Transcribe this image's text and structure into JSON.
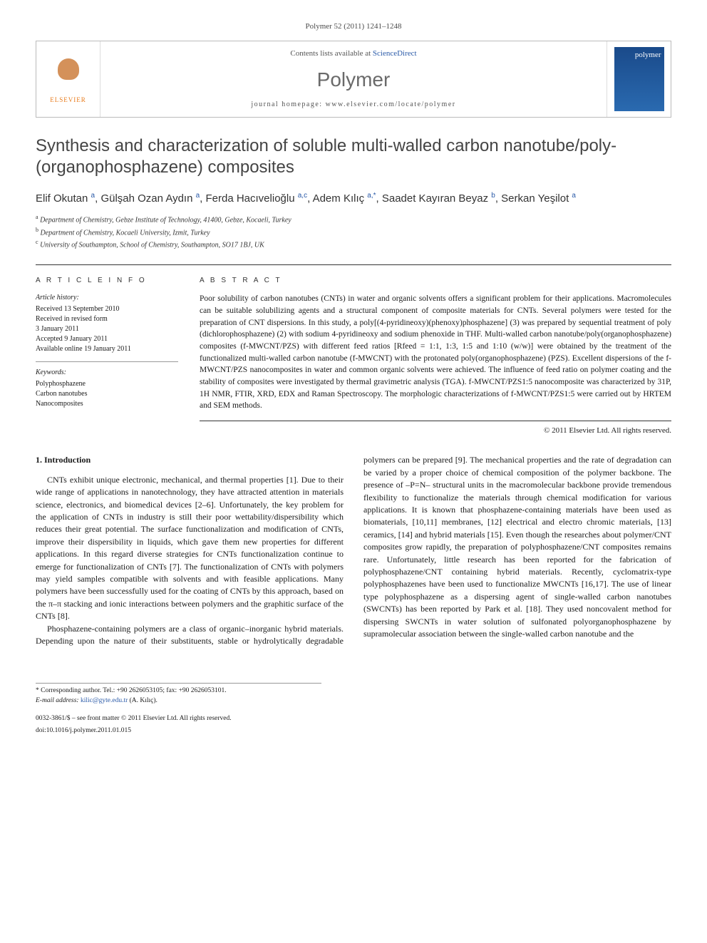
{
  "citation": "Polymer 52 (2011) 1241–1248",
  "header": {
    "contents_prefix": "Contents lists available at ",
    "contents_link": "ScienceDirect",
    "journal": "Polymer",
    "homepage_label": "journal homepage: ",
    "homepage_url": "www.elsevier.com/locate/polymer",
    "publisher": "ELSEVIER",
    "cover_label": "polymer"
  },
  "title": "Synthesis and characterization of soluble multi-walled carbon nanotube/poly-(organophosphazene) composites",
  "authors_html": "Elif Okutan <sup>a</sup>, Gülşah Ozan Aydın <sup>a</sup>, Ferda Hacıvelioğlu <sup>a,c</sup>, Adem Kılıç <sup>a,*</sup>, Saadet Kayıran Beyaz <sup>b</sup>, Serkan Yeşilot <sup>a</sup>",
  "affiliations": [
    {
      "sup": "a",
      "text": "Department of Chemistry, Gebze Institute of Technology, 41400, Gebze, Kocaeli, Turkey"
    },
    {
      "sup": "b",
      "text": "Department of Chemistry, Kocaeli University, Izmit, Turkey"
    },
    {
      "sup": "c",
      "text": "University of Southampton, School of Chemistry, Southampton, SO17 1BJ, UK"
    }
  ],
  "article_info": {
    "heading": "A R T I C L E   I N F O",
    "history_label": "Article history:",
    "received": "Received 13 September 2010",
    "revised1": "Received in revised form",
    "revised2": "3 January 2011",
    "accepted": "Accepted 9 January 2011",
    "online": "Available online 19 January 2011",
    "keywords_label": "Keywords:",
    "keywords": [
      "Polyphosphazene",
      "Carbon nanotubes",
      "Nanocomposites"
    ]
  },
  "abstract": {
    "heading": "A B S T R A C T",
    "text": "Poor solubility of carbon nanotubes (CNTs) in water and organic solvents offers a significant problem for their applications. Macromolecules can be suitable solubilizing agents and a structural component of composite materials for CNTs. Several polymers were tested for the preparation of CNT dispersions. In this study, a poly[(4-pyridineoxy)(phenoxy)phosphazene] (3) was prepared by sequential treatment of poly (dichlorophosphazene) (2) with sodium 4-pyridineoxy and sodium phenoxide in THF. Multi-walled carbon nanotube/poly(organophosphazene) composites (f-MWCNT/PZS) with different feed ratios [Rfeed = 1:1, 1:3, 1:5 and 1:10 (w/w)] were obtained by the treatment of the functionalized multi-walled carbon nanotube (f-MWCNT) with the protonated poly(organophosphazene) (PZS). Excellent dispersions of the f-MWCNT/PZS nanocomposites in water and common organic solvents were achieved. The influence of feed ratio on polymer coating and the stability of composites were investigated by thermal gravimetric analysis (TGA). f-MWCNT/PZS1:5 nanocomposite was characterized by 31P, 1H NMR, FTIR, XRD, EDX and Raman Spectroscopy. The morphologic characterizations of f-MWCNT/PZS1:5 were carried out by HRTEM and SEM methods.",
    "copyright": "© 2011 Elsevier Ltd. All rights reserved."
  },
  "body": {
    "section_number": "1.",
    "section_title": "Introduction",
    "para1": "CNTs exhibit unique electronic, mechanical, and thermal properties [1]. Due to their wide range of applications in nanotechnology, they have attracted attention in materials science, electronics, and biomedical devices [2–6]. Unfortunately, the key problem for the application of CNTs in industry is still their poor wettability/dispersibility which reduces their great potential. The surface functionalization and modification of CNTs, improve their dispersibility in liquids, which gave them new properties for different applications. In this regard diverse strategies for CNTs functionalization continue to emerge for functionalization of CNTs [7]. The functionalization of CNTs with polymers may yield samples compatible with solvents and with feasible applications. Many polymers have been successfully used for the coating of CNTs by this approach, based on the π–π stacking and ionic interactions between polymers and the graphitic surface of the CNTs [8].",
    "para2": "Phosphazene-containing polymers are a class of organic–inorganic hybrid materials. Depending upon the nature of their substituents, stable or hydrolytically degradable polymers can be prepared [9]. The mechanical properties and the rate of degradation can be varied by a proper choice of chemical composition of the polymer backbone. The presence of –P=N– structural units in the macromolecular backbone provide tremendous flexibility to functionalize the materials through chemical modification for various applications. It is known that phosphazene-containing materials have been used as biomaterials, [10,11] membranes, [12] electrical and electro chromic materials, [13] ceramics, [14] and hybrid materials [15]. Even though the researches about polymer/CNT composites grow rapidly, the preparation of polyphosphazene/CNT composites remains rare. Unfortunately, little research has been reported for the fabrication of polyphosphazene/CNT containing hybrid materials. Recently, cyclomatrix-type polyphosphazenes have been used to functionalize MWCNTs [16,17]. The use of linear type polyphosphazene as a dispersing agent of single-walled carbon nanotubes (SWCNTs) has been reported by Park et al. [18]. They used noncovalent method for dispersing SWCNTs in water solution of sulfonated polyorganophosphazene by supramolecular association between the single-walled carbon nanotube and the"
  },
  "footer": {
    "corr_label": "* Corresponding author. Tel.: +90 2626053105; fax: +90 2626053101.",
    "email_label": "E-mail address: ",
    "email": "kilic@gyte.edu.tr",
    "email_suffix": " (A. Kılıç).",
    "issn": "0032-3861/$ – see front matter © 2011 Elsevier Ltd. All rights reserved.",
    "doi": "doi:10.1016/j.polymer.2011.01.015"
  },
  "colors": {
    "link": "#2a5aa8",
    "text": "#1a1a1a",
    "heading_gray": "#6a6a6a",
    "elsevier_orange": "#e87a1a",
    "cover_blue": "#1a4a8a"
  }
}
